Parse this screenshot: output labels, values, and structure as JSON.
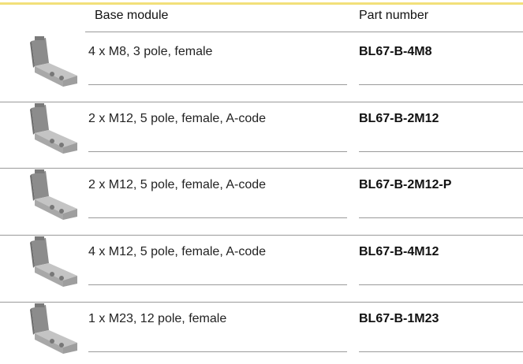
{
  "table": {
    "columns": [
      "Base module",
      "Part number"
    ],
    "rows": [
      [
        "4 x M8, 3 pole, female",
        "BL67-B-4M8"
      ],
      [
        "2 x M12, 5 pole, female, A-code",
        "BL67-B-2M12"
      ],
      [
        "2 x M12, 5 pole, female, A-code",
        "BL67-B-2M12-P"
      ],
      [
        "4 x M12, 5 pole, female, A-code",
        "BL67-B-4M12"
      ],
      [
        "1 x M23, 12 pole, female",
        "BL67-B-1M23"
      ]
    ]
  }
}
